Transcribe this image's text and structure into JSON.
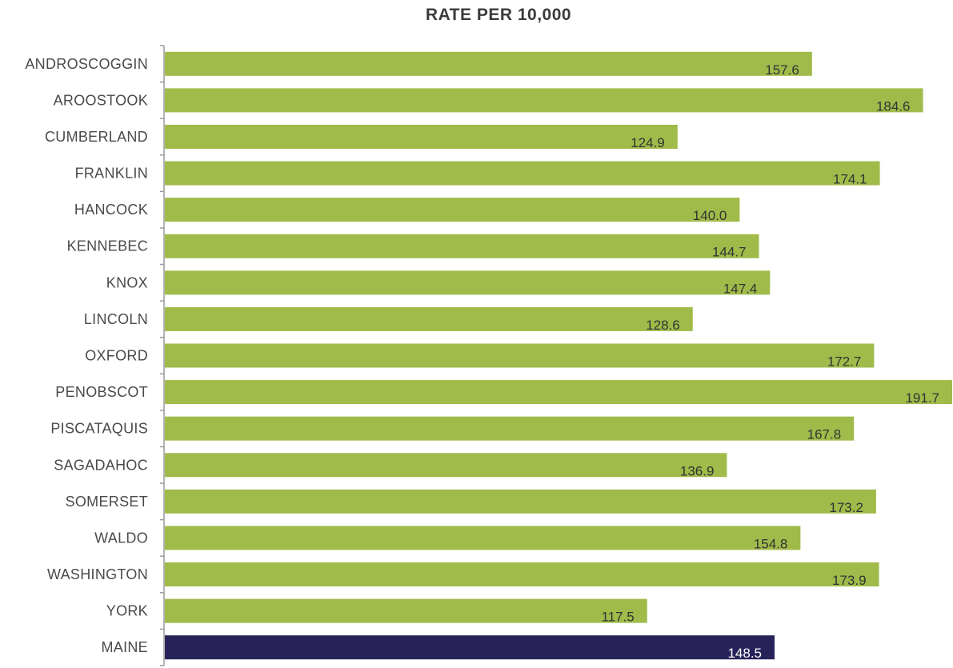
{
  "chart_data": {
    "type": "bar",
    "orientation": "horizontal",
    "title": "RATE PER 10,000",
    "categories": [
      "ANDROSCOGGIN",
      "AROOSTOOK",
      "CUMBERLAND",
      "FRANKLIN",
      "HANCOCK",
      "KENNEBEC",
      "KNOX",
      "LINCOLN",
      "OXFORD",
      "PENOBSCOT",
      "PISCATAQUIS",
      "SAGADAHOC",
      "SOMERSET",
      "WALDO",
      "WASHINGTON",
      "YORK",
      "MAINE"
    ],
    "values": [
      157.6,
      184.6,
      124.9,
      174.1,
      140.0,
      144.7,
      147.4,
      128.6,
      172.7,
      191.7,
      167.8,
      136.9,
      173.2,
      154.8,
      173.9,
      117.5,
      148.5
    ],
    "value_labels": [
      "157.6",
      "184.6",
      "124.9",
      "174.1",
      "140.0",
      "144.7",
      "147.4",
      "128.6",
      "172.7",
      "191.7",
      "167.8",
      "136.9",
      "173.2",
      "154.8",
      "173.9",
      "117.5",
      "148.5"
    ],
    "xlim": [
      0,
      191.7
    ],
    "grid": false,
    "legend": "none",
    "colors": {
      "bar": "#a0bb4a",
      "total_bar": "#27235a",
      "axis": "#9a9a9a"
    },
    "highlight_category": "MAINE"
  }
}
